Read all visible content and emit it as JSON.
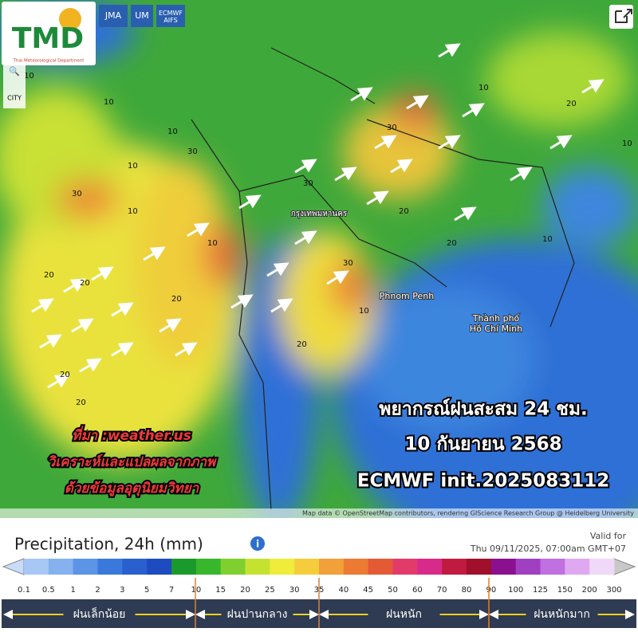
{
  "header": {
    "logo": "TMD",
    "logo_sub": "Thai Meteorological Department",
    "models": [
      "JMA",
      "UM",
      "ECMWF AIFS"
    ],
    "city_button": "CITY"
  },
  "map": {
    "places": [
      "Phnom Penh",
      "Thành phố Hồ Chí Minh",
      "กรุงเทพมหานคร"
    ],
    "contours": [
      "30",
      "10",
      "20",
      "10",
      "30",
      "20",
      "10",
      "30",
      "20",
      "10",
      "20",
      "10",
      "30",
      "20",
      "10",
      "20",
      "30",
      "10",
      "20",
      "10",
      "20",
      "10",
      "20",
      "10"
    ],
    "overlay": {
      "source": "ที่มา :weather.us",
      "analysis": "วิเคราะห์และแปลผลจากภาพ",
      "data": "ด้วยข้อมูลอุตุนิยมวิทยา",
      "headline": "พยากรณ์ฝนสะสม 24 ชม.",
      "date": "10 กันยายน 2568",
      "model": "ECMWF init.2025083112"
    },
    "attribution": "Map data © OpenStreetMap contributors, rendering GIScience Research Group @ Heidelberg University"
  },
  "legend": {
    "title": "Precipitation, 24h (mm)",
    "info": "i",
    "valid_label": "Valid for",
    "valid_time": "Thu 09/11/2025, 07:00am GMT+07",
    "ticks": [
      "0.1",
      "0.5",
      "1",
      "2",
      "3",
      "5",
      "7",
      "10",
      "15",
      "20",
      "25",
      "30",
      "35",
      "40",
      "45",
      "50",
      "60",
      "70",
      "80",
      "90",
      "100",
      "125",
      "150",
      "200",
      "300"
    ],
    "colors": [
      "#c8dcfa",
      "#a7c7f5",
      "#86b1ef",
      "#5c94e6",
      "#3b78dc",
      "#2a5fcf",
      "#1e4bbf",
      "#1a9a2a",
      "#38b62c",
      "#7fd02e",
      "#c5e231",
      "#f0ec3a",
      "#f5cd3c",
      "#f1a03a",
      "#ec7a32",
      "#e35a35",
      "#e23b6a",
      "#d82a8b",
      "#c01a40",
      "#a0102a",
      "#8a1090",
      "#a040c0",
      "#c070e0",
      "#e0a8f0",
      "#f0d8f8",
      "#c8c8c8"
    ],
    "categories": [
      "ฝนเล็กน้อย",
      "ฝนปานกลาง",
      "ฝนหนัก",
      "ฝนหนักมาก"
    ]
  }
}
